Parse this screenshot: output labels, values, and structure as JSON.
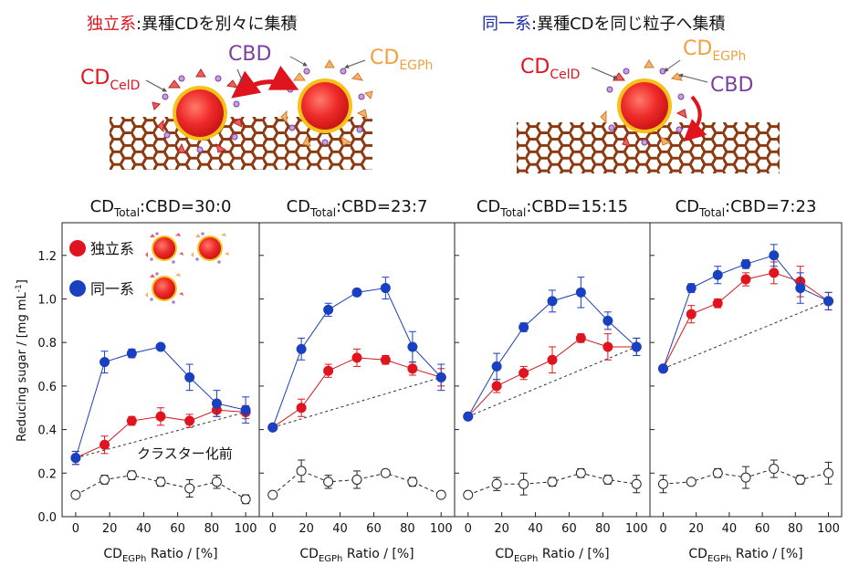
{
  "schematic": {
    "left_title": {
      "emph": "独立系",
      "rest": ":異種CDを別々に集積",
      "emph_color": "#e0141e"
    },
    "right_title": {
      "emph": "同一系",
      "rest": ":異種CDを同じ粒子へ集積",
      "emph_color": "#1a2aa8"
    },
    "labels": {
      "cbd": "CBD",
      "cd_main": "CD",
      "celld_sub": "CelD",
      "egph_sub": "EGPh"
    },
    "colors": {
      "celld": "#e0141e",
      "cbd": "#7a3fa0",
      "egph": "#f0a040",
      "mesh": "#8b3a12",
      "particle_core": "#ee2a2a",
      "particle_rim": "#f6c21a"
    }
  },
  "chart_data": [
    {
      "type": "line",
      "panel_title": {
        "main": "CD",
        "sub": "Total",
        "rest": ":CBD=30:0"
      },
      "x": [
        0,
        17,
        33,
        50,
        67,
        83,
        100
      ],
      "series": [
        {
          "name": "独立系",
          "style": "filled-red",
          "values": [
            0.27,
            0.33,
            0.44,
            0.46,
            0.44,
            0.49,
            0.48
          ],
          "errors": [
            0.03,
            0.04,
            0.02,
            0.04,
            0.03,
            0.03,
            0.03
          ]
        },
        {
          "name": "同一系",
          "style": "filled-blue",
          "values": [
            0.27,
            0.71,
            0.75,
            0.78,
            0.64,
            0.52,
            0.49
          ],
          "errors": [
            0.03,
            0.05,
            0.02,
            0.01,
            0.06,
            0.06,
            0.06
          ]
        },
        {
          "name": "クラスター化前",
          "style": "open-dashed",
          "values": [
            0.1,
            0.17,
            0.19,
            0.16,
            0.13,
            0.16,
            0.08
          ],
          "errors": [
            0.01,
            0.02,
            0.02,
            0.02,
            0.04,
            0.03,
            0.02
          ]
        }
      ],
      "reference_line": [
        [
          0,
          0.27
        ],
        [
          100,
          0.48
        ]
      ],
      "ylim": [
        0,
        1.35
      ],
      "xlim": [
        -8,
        108
      ]
    },
    {
      "type": "line",
      "panel_title": {
        "main": "CD",
        "sub": "Total",
        "rest": ":CBD=23:7"
      },
      "x": [
        0,
        17,
        33,
        50,
        67,
        83,
        100
      ],
      "series": [
        {
          "name": "独立系",
          "style": "filled-red",
          "values": [
            0.41,
            0.5,
            0.67,
            0.73,
            0.72,
            0.68,
            0.64
          ],
          "errors": [
            0.01,
            0.04,
            0.03,
            0.04,
            0.02,
            0.03,
            0.04
          ]
        },
        {
          "name": "同一系",
          "style": "filled-blue",
          "values": [
            0.41,
            0.77,
            0.95,
            1.03,
            1.05,
            0.78,
            0.64
          ],
          "errors": [
            0.01,
            0.05,
            0.03,
            0.01,
            0.05,
            0.07,
            0.06
          ]
        },
        {
          "name": "クラスター化前",
          "style": "open-dashed",
          "values": [
            0.1,
            0.21,
            0.16,
            0.17,
            0.2,
            0.16,
            0.1
          ],
          "errors": [
            0.01,
            0.05,
            0.03,
            0.04,
            0.01,
            0.02,
            0.01
          ]
        }
      ],
      "reference_line": [
        [
          0,
          0.41
        ],
        [
          100,
          0.64
        ]
      ],
      "ylim": [
        0,
        1.35
      ],
      "xlim": [
        -8,
        108
      ]
    },
    {
      "type": "line",
      "panel_title": {
        "main": "CD",
        "sub": "Total",
        "rest": ":CBD=15:15"
      },
      "x": [
        0,
        17,
        33,
        50,
        67,
        83,
        100
      ],
      "series": [
        {
          "name": "独立系",
          "style": "filled-red",
          "values": [
            0.46,
            0.6,
            0.66,
            0.72,
            0.82,
            0.78,
            0.78
          ],
          "errors": [
            0.01,
            0.03,
            0.03,
            0.06,
            0.02,
            0.06,
            0.04
          ]
        },
        {
          "name": "同一系",
          "style": "filled-blue",
          "values": [
            0.46,
            0.69,
            0.87,
            0.99,
            1.03,
            0.9,
            0.78
          ],
          "errors": [
            0.01,
            0.06,
            0.02,
            0.05,
            0.07,
            0.04,
            0.04
          ]
        },
        {
          "name": "クラスター化前",
          "style": "open-dashed",
          "values": [
            0.1,
            0.15,
            0.15,
            0.16,
            0.2,
            0.17,
            0.15
          ],
          "errors": [
            0.01,
            0.03,
            0.05,
            0.02,
            0.02,
            0.02,
            0.04
          ]
        }
      ],
      "reference_line": [
        [
          0,
          0.46
        ],
        [
          100,
          0.78
        ]
      ],
      "ylim": [
        0,
        1.35
      ],
      "xlim": [
        -8,
        108
      ]
    },
    {
      "type": "line",
      "panel_title": {
        "main": "CD",
        "sub": "Total",
        "rest": ":CBD=7:23"
      },
      "x": [
        0,
        17,
        33,
        50,
        67,
        83,
        100
      ],
      "series": [
        {
          "name": "独立系",
          "style": "filled-red",
          "values": [
            0.68,
            0.93,
            0.98,
            1.09,
            1.12,
            1.08,
            0.99
          ],
          "errors": [
            0.01,
            0.04,
            0.02,
            0.03,
            0.05,
            0.07,
            0.04
          ]
        },
        {
          "name": "同一系",
          "style": "filled-blue",
          "values": [
            0.68,
            1.05,
            1.11,
            1.16,
            1.2,
            1.05,
            0.99
          ],
          "errors": [
            0.01,
            0.02,
            0.04,
            0.02,
            0.05,
            0.07,
            0.04
          ]
        },
        {
          "name": "クラスター化前",
          "style": "open-dashed",
          "values": [
            0.15,
            0.16,
            0.2,
            0.18,
            0.22,
            0.17,
            0.2
          ],
          "errors": [
            0.04,
            0.01,
            0.02,
            0.05,
            0.04,
            0.02,
            0.05
          ]
        }
      ],
      "reference_line": [
        [
          0,
          0.68
        ],
        [
          100,
          0.99
        ]
      ],
      "ylim": [
        0,
        1.35
      ],
      "xlim": [
        -8,
        108
      ]
    }
  ],
  "axes": {
    "ylabel_main": "Reducing sugar / [mg mL",
    "ylabel_sup": "-1",
    "ylabel_close": "]",
    "yticks": [
      0.0,
      0.2,
      0.4,
      0.6,
      0.8,
      1.0,
      1.2
    ],
    "ytick_labels": [
      "0.0",
      "0.2",
      "0.4",
      "0.6",
      "0.8",
      "1.0",
      "1.2"
    ],
    "xticks": [
      0,
      20,
      40,
      60,
      80,
      100
    ],
    "xtick_labels": [
      "0",
      "20",
      "40",
      "60",
      "80",
      "100"
    ],
    "xlabel_main": "CD",
    "xlabel_sub": "EGPh",
    "xlabel_rest": " Ratio / [%]"
  },
  "legend": {
    "independent": "独立系",
    "same": "同一系",
    "before": "クラスター化前"
  },
  "series_colors": {
    "red": "#e0141e",
    "blue": "#1840c0",
    "line_blue": "#1a40b0",
    "line_red": "#d01818",
    "black": "#222222"
  }
}
